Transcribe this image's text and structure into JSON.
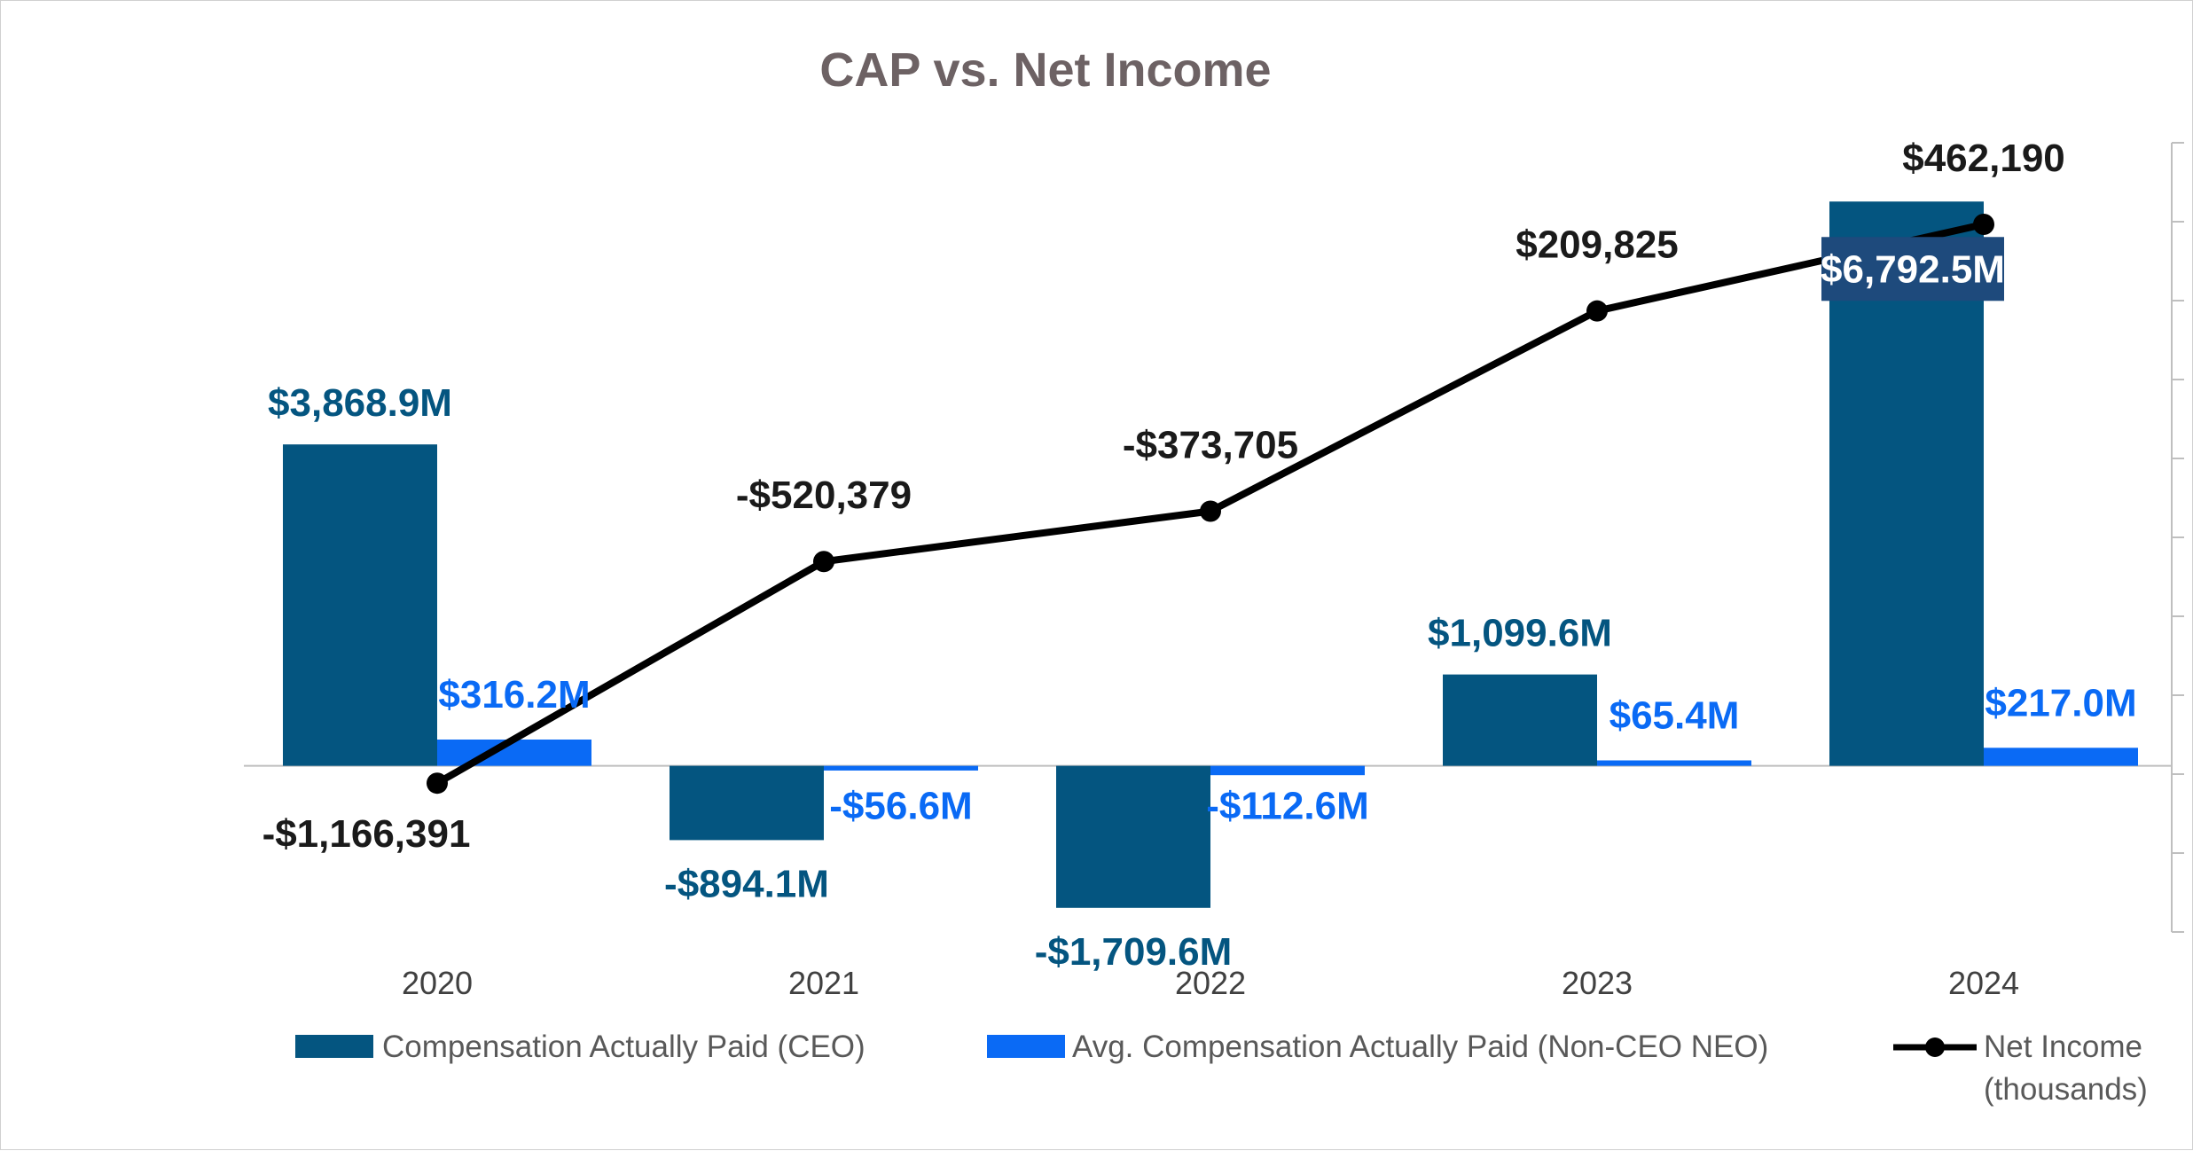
{
  "chart_data": {
    "type": "bar",
    "title": "CAP vs. Net Income",
    "categories": [
      "2020",
      "2021",
      "2022",
      "2023",
      "2024"
    ],
    "series": [
      {
        "name": "Compensation Actually Paid (CEO)",
        "kind": "bar",
        "color": "#045580",
        "values": [
          3868.9,
          -894.1,
          -1709.6,
          1099.6,
          6792.5
        ],
        "labels": [
          "$3,868.9M",
          "-$894.1M",
          "-$1,709.6M",
          "$1,099.6M",
          "$6,792.5M"
        ]
      },
      {
        "name": "Avg. Compensation Actually Paid (Non-CEO NEO)",
        "kind": "bar",
        "color": "#0A6AF5",
        "values": [
          316.2,
          -56.6,
          -112.6,
          65.4,
          217.0
        ],
        "labels": [
          "$316.2M",
          "-$56.6M",
          "-$112.6M",
          "$65.4M",
          "$217.0M"
        ]
      },
      {
        "name": "Net Income\n(thousands)",
        "kind": "line",
        "color": "#000000",
        "values": [
          -1166391,
          -520379,
          -373705,
          209825,
          462190
        ],
        "labels": [
          "-$1,166,391",
          "-$520,379",
          "-$373,705",
          "$209,825",
          "$462,190"
        ]
      }
    ],
    "y_left_range": [
      -2000,
      7500
    ],
    "y_right_range": [
      -1600000,
      700000
    ],
    "legend_position": "bottom",
    "title_color": "#6d6264",
    "line_label_color": "#1a1a1a",
    "axis_color": "#bfbfbf",
    "highlight_label_bg": "#1e4a7c",
    "highlight_label_fg": "#ffffff"
  }
}
